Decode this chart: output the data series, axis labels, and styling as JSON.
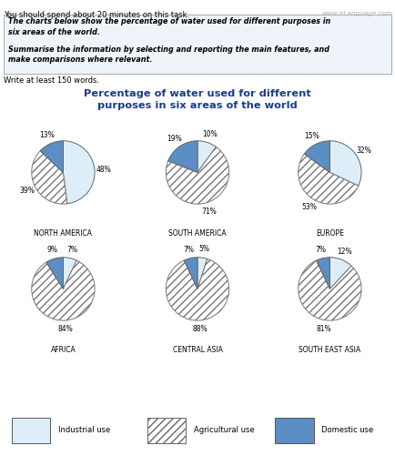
{
  "title": "Percentage of water used for different\npurposes in six areas of the world",
  "title_color": "#1a3a8a",
  "header_text_line1": "The charts below show the percentage of water used for different purposes in\nsix areas of the world.",
  "header_text_line2": "Summarise the information by selecting and reporting the main features, and\nmake comparisons where relevant.",
  "subheader": "Write at least 150 words.",
  "task_line": "You should spend about 20 minutes on this task.",
  "watermark": "www.irLanguage.com",
  "areas": [
    {
      "name": "NORTH AMERICA",
      "industrial": 48,
      "agricultural": 39,
      "domestic": 13
    },
    {
      "name": "SOUTH AMERICA",
      "industrial": 10,
      "agricultural": 71,
      "domestic": 19
    },
    {
      "name": "EUROPE",
      "industrial": 32,
      "agricultural": 53,
      "domestic": 15
    },
    {
      "name": "AFRICA",
      "industrial": 7,
      "agricultural": 84,
      "domestic": 9
    },
    {
      "name": "CENTRAL ASIA",
      "industrial": 5,
      "agricultural": 88,
      "domestic": 7
    },
    {
      "name": "SOUTH EAST ASIA",
      "industrial": 12,
      "agricultural": 81,
      "domestic": 7
    }
  ],
  "col_industrial": "#ddeef8",
  "col_agricultural": "#ffffff",
  "col_domestic": "#5b8ec4",
  "hatch": "////",
  "bg_color": "#ffffff",
  "header_bg": "#eef4fa"
}
